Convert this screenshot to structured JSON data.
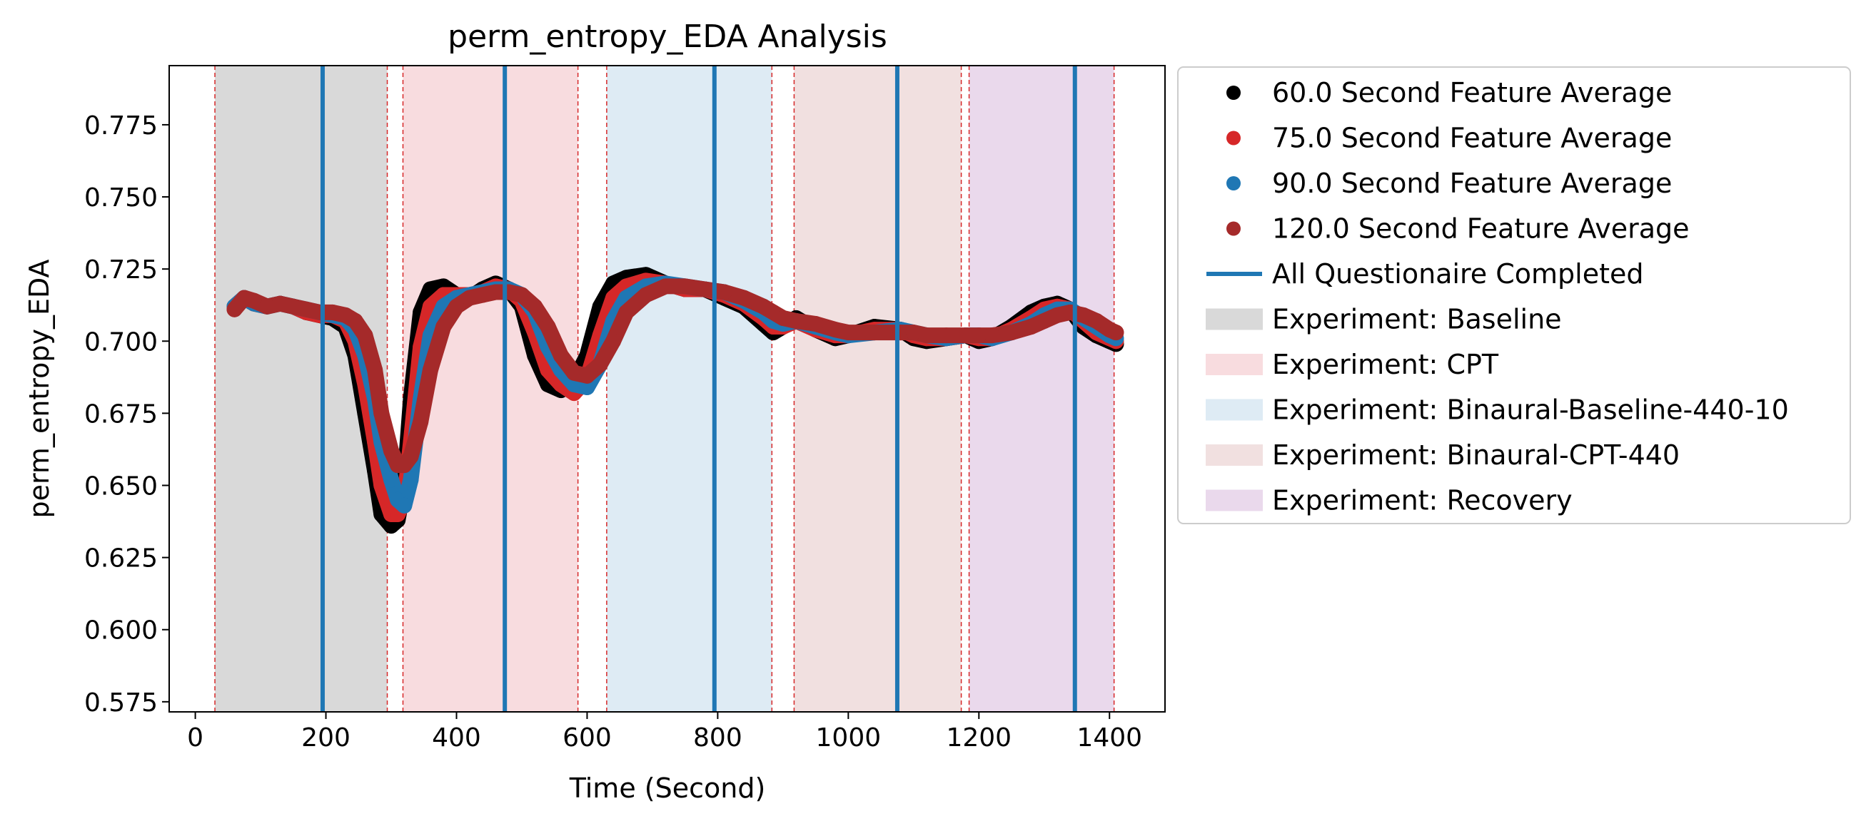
{
  "chart_data": {
    "type": "scatter",
    "title": "perm_entropy_EDA Analysis",
    "xlabel": "Time (Second)",
    "ylabel": "perm_entropy_EDA",
    "xlim": [
      -40,
      1485
    ],
    "ylim": [
      0.5715,
      0.7955
    ],
    "xticks": [
      0,
      200,
      400,
      600,
      800,
      1000,
      1200,
      1400
    ],
    "xtick_labels": [
      "0",
      "200",
      "400",
      "600",
      "800",
      "1000",
      "1200",
      "1400"
    ],
    "yticks": [
      0.575,
      0.6,
      0.625,
      0.65,
      0.675,
      0.7,
      0.725,
      0.75,
      0.775
    ],
    "ytick_labels": [
      "0.575",
      "0.600",
      "0.625",
      "0.650",
      "0.675",
      "0.700",
      "0.725",
      "0.750",
      "0.775"
    ],
    "grid": false,
    "legend_position": "outside-right-top",
    "series": [
      {
        "name": "60.0 Second Feature Average",
        "color": "#000000",
        "x": [
          60,
          75,
          90,
          110,
          130,
          150,
          170,
          190,
          210,
          230,
          245,
          260,
          275,
          285,
          300,
          310,
          320,
          330,
          345,
          360,
          380,
          400,
          420,
          440,
          460,
          480,
          500,
          520,
          540,
          560,
          580,
          600,
          620,
          640,
          660,
          690,
          720,
          750,
          780,
          810,
          840,
          870,
          885,
          900,
          920,
          950,
          980,
          1000,
          1040,
          1080,
          1100,
          1120,
          1150,
          1180,
          1200,
          1220,
          1250,
          1280,
          1300,
          1320,
          1340,
          1360,
          1380,
          1400,
          1410
        ],
        "y": [
          0.712,
          0.715,
          0.713,
          0.712,
          0.713,
          0.712,
          0.71,
          0.709,
          0.708,
          0.705,
          0.695,
          0.675,
          0.655,
          0.64,
          0.636,
          0.638,
          0.65,
          0.68,
          0.71,
          0.718,
          0.719,
          0.716,
          0.715,
          0.718,
          0.72,
          0.718,
          0.712,
          0.695,
          0.685,
          0.683,
          0.686,
          0.695,
          0.712,
          0.72,
          0.722,
          0.723,
          0.72,
          0.718,
          0.718,
          0.715,
          0.712,
          0.706,
          0.703,
          0.705,
          0.708,
          0.704,
          0.701,
          0.702,
          0.705,
          0.704,
          0.701,
          0.7,
          0.701,
          0.702,
          0.7,
          0.701,
          0.705,
          0.71,
          0.712,
          0.713,
          0.711,
          0.705,
          0.702,
          0.7,
          0.699
        ]
      },
      {
        "name": "75.0 Second Feature Average",
        "color": "#d62728",
        "x": [
          60,
          75,
          90,
          110,
          130,
          150,
          170,
          190,
          210,
          230,
          245,
          260,
          275,
          285,
          300,
          310,
          320,
          330,
          345,
          360,
          380,
          400,
          420,
          440,
          460,
          480,
          500,
          520,
          540,
          560,
          580,
          600,
          620,
          640,
          660,
          690,
          720,
          750,
          780,
          810,
          840,
          870,
          885,
          900,
          920,
          950,
          980,
          1000,
          1040,
          1080,
          1100,
          1120,
          1150,
          1180,
          1200,
          1220,
          1250,
          1280,
          1300,
          1320,
          1340,
          1360,
          1380,
          1400,
          1410
        ],
        "y": [
          0.712,
          0.715,
          0.713,
          0.712,
          0.713,
          0.712,
          0.71,
          0.709,
          0.709,
          0.707,
          0.7,
          0.685,
          0.665,
          0.65,
          0.64,
          0.64,
          0.645,
          0.665,
          0.698,
          0.712,
          0.716,
          0.716,
          0.716,
          0.717,
          0.719,
          0.718,
          0.714,
          0.703,
          0.69,
          0.685,
          0.682,
          0.687,
          0.702,
          0.715,
          0.719,
          0.721,
          0.72,
          0.718,
          0.718,
          0.716,
          0.713,
          0.708,
          0.705,
          0.705,
          0.707,
          0.704,
          0.702,
          0.702,
          0.704,
          0.704,
          0.702,
          0.701,
          0.701,
          0.702,
          0.701,
          0.701,
          0.704,
          0.708,
          0.711,
          0.712,
          0.711,
          0.707,
          0.703,
          0.701,
          0.7
        ]
      },
      {
        "name": "90.0 Second Feature Average",
        "color": "#1f77b4",
        "x": [
          60,
          75,
          90,
          110,
          130,
          150,
          170,
          190,
          210,
          230,
          245,
          260,
          275,
          285,
          300,
          310,
          320,
          330,
          345,
          360,
          380,
          400,
          420,
          440,
          460,
          480,
          500,
          520,
          540,
          560,
          580,
          600,
          620,
          640,
          660,
          690,
          720,
          750,
          780,
          810,
          840,
          870,
          885,
          900,
          920,
          950,
          980,
          1000,
          1040,
          1080,
          1100,
          1120,
          1150,
          1180,
          1200,
          1220,
          1250,
          1280,
          1300,
          1320,
          1340,
          1360,
          1380,
          1400,
          1410
        ],
        "y": [
          0.712,
          0.715,
          0.713,
          0.712,
          0.713,
          0.712,
          0.711,
          0.71,
          0.709,
          0.708,
          0.704,
          0.695,
          0.68,
          0.665,
          0.652,
          0.645,
          0.643,
          0.652,
          0.68,
          0.702,
          0.712,
          0.715,
          0.716,
          0.717,
          0.718,
          0.718,
          0.716,
          0.71,
          0.698,
          0.69,
          0.685,
          0.684,
          0.692,
          0.707,
          0.715,
          0.719,
          0.72,
          0.719,
          0.718,
          0.717,
          0.714,
          0.71,
          0.707,
          0.706,
          0.707,
          0.705,
          0.703,
          0.702,
          0.703,
          0.704,
          0.703,
          0.702,
          0.701,
          0.702,
          0.702,
          0.701,
          0.703,
          0.706,
          0.709,
          0.711,
          0.711,
          0.708,
          0.705,
          0.702,
          0.701
        ]
      },
      {
        "name": "120.0 Second Feature Average",
        "color": "#a52a2a",
        "x": [
          60,
          75,
          90,
          110,
          130,
          150,
          170,
          190,
          210,
          230,
          245,
          260,
          275,
          285,
          300,
          310,
          320,
          330,
          345,
          360,
          380,
          400,
          420,
          440,
          460,
          480,
          500,
          520,
          540,
          560,
          580,
          600,
          620,
          640,
          660,
          690,
          720,
          750,
          780,
          810,
          840,
          870,
          885,
          900,
          920,
          950,
          980,
          1000,
          1040,
          1080,
          1100,
          1120,
          1150,
          1180,
          1200,
          1220,
          1250,
          1280,
          1300,
          1320,
          1340,
          1360,
          1380,
          1400,
          1410
        ],
        "y": [
          0.711,
          0.715,
          0.714,
          0.712,
          0.713,
          0.712,
          0.711,
          0.71,
          0.71,
          0.709,
          0.707,
          0.702,
          0.69,
          0.675,
          0.662,
          0.657,
          0.657,
          0.66,
          0.672,
          0.69,
          0.705,
          0.712,
          0.715,
          0.716,
          0.717,
          0.717,
          0.716,
          0.712,
          0.705,
          0.695,
          0.689,
          0.688,
          0.692,
          0.7,
          0.71,
          0.716,
          0.719,
          0.719,
          0.718,
          0.717,
          0.715,
          0.712,
          0.71,
          0.708,
          0.707,
          0.706,
          0.704,
          0.703,
          0.703,
          0.703,
          0.703,
          0.702,
          0.702,
          0.702,
          0.702,
          0.702,
          0.703,
          0.705,
          0.707,
          0.709,
          0.71,
          0.709,
          0.707,
          0.704,
          0.703
        ]
      }
    ],
    "questionnaire_line": {
      "name": "All Questionaire Completed",
      "color": "#1f77b4",
      "x": [
        195,
        474,
        795,
        1075,
        1347
      ]
    },
    "phase_boundaries": {
      "color": "#d62728",
      "x": [
        30,
        294,
        318,
        586,
        630,
        883,
        917,
        1173,
        1185,
        1407
      ]
    },
    "phases": [
      {
        "name": "Experiment: Baseline",
        "color": "#d9d9d9",
        "start": 30,
        "end": 294
      },
      {
        "name": "Experiment: CPT",
        "color": "#f8dcdf",
        "start": 318,
        "end": 586
      },
      {
        "name": "Experiment: Binaural-Baseline-440-10",
        "color": "#deebf4",
        "start": 630,
        "end": 883
      },
      {
        "name": "Experiment: Binaural-CPT-440",
        "color": "#f1e0e0",
        "start": 917,
        "end": 1173
      },
      {
        "name": "Experiment: Recovery",
        "color": "#ead9ec",
        "start": 1185,
        "end": 1407
      }
    ],
    "legend_entries": [
      {
        "label": "60.0 Second Feature Average",
        "kind": "marker",
        "color": "#000000"
      },
      {
        "label": "75.0 Second Feature Average",
        "kind": "marker",
        "color": "#d62728"
      },
      {
        "label": "90.0 Second Feature Average",
        "kind": "marker",
        "color": "#1f77b4"
      },
      {
        "label": "120.0 Second Feature Average",
        "kind": "marker",
        "color": "#a52a2a"
      },
      {
        "label": "All Questionaire Completed",
        "kind": "line",
        "color": "#1f77b4"
      },
      {
        "label": "Experiment: Baseline",
        "kind": "patch",
        "color": "#d9d9d9"
      },
      {
        "label": "Experiment: CPT",
        "kind": "patch",
        "color": "#f8dcdf"
      },
      {
        "label": "Experiment: Binaural-Baseline-440-10",
        "kind": "patch",
        "color": "#deebf4"
      },
      {
        "label": "Experiment: Binaural-CPT-440",
        "kind": "patch",
        "color": "#f1e0e0"
      },
      {
        "label": "Experiment: Recovery",
        "kind": "patch",
        "color": "#ead9ec"
      }
    ]
  }
}
